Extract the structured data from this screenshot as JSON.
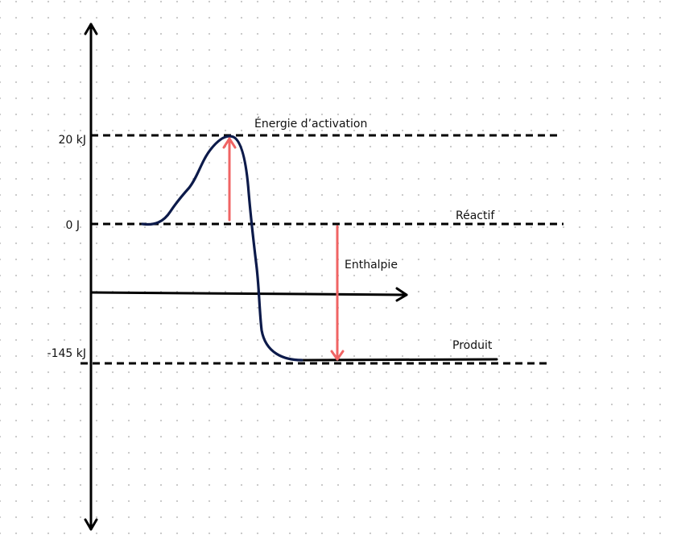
{
  "diagram": {
    "labels": {
      "activation_energy": "Énergie d’activation",
      "reactant": "Réactif",
      "enthalpy": "Enthalpie",
      "product": "Produit"
    },
    "ticks": {
      "top": "20 kJ",
      "zero": "0 J",
      "bottom": "-145 kJ"
    },
    "colors": {
      "axis": "#000000",
      "curve": "#0c1a4a",
      "arrows": "#f06464",
      "guides": "#000000"
    }
  }
}
